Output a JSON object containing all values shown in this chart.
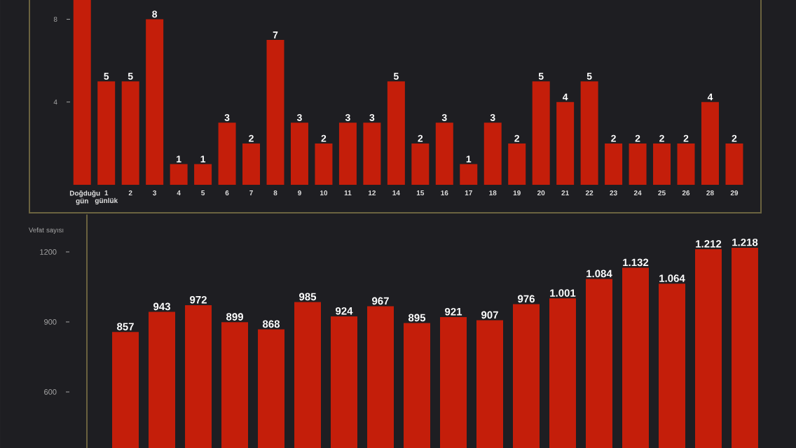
{
  "chart_data": [
    {
      "type": "bar",
      "categories": [
        "Doğduğu gün",
        "1 günlük",
        "2",
        "3",
        "4",
        "5",
        "6",
        "7",
        "8",
        "9",
        "10",
        "11",
        "12",
        "14",
        "15",
        "16",
        "17",
        "18",
        "19",
        "20",
        "21",
        "22",
        "23",
        "24",
        "25",
        "26",
        "28",
        "29"
      ],
      "values": [
        9,
        5,
        5,
        8,
        1,
        1,
        3,
        2,
        7,
        3,
        2,
        3,
        3,
        5,
        2,
        3,
        1,
        3,
        2,
        5,
        4,
        5,
        2,
        2,
        2,
        2,
        4,
        2
      ],
      "value_labels": [
        null,
        "5",
        "5",
        "8",
        "1",
        "1",
        "3",
        "2",
        "7",
        "3",
        "2",
        "3",
        "3",
        "5",
        "2",
        "3",
        "1",
        "3",
        "2",
        "5",
        "4",
        "5",
        "2",
        "2",
        "2",
        "2",
        "4",
        "2"
      ],
      "color": "#c41e0a",
      "ylim": [
        0,
        9
      ],
      "yticks": [
        4,
        8
      ]
    },
    {
      "type": "bar",
      "categories": [
        null,
        null,
        null,
        null,
        null,
        null,
        null,
        null,
        null,
        null,
        null,
        null,
        null,
        null,
        null,
        null,
        null,
        null
      ],
      "values": [
        857,
        943,
        972,
        899,
        868,
        985,
        924,
        967,
        895,
        921,
        907,
        976,
        1001,
        1084,
        1132,
        1064,
        1212,
        1218
      ],
      "value_labels": [
        "857",
        "943",
        "972",
        "899",
        "868",
        "985",
        "924",
        "967",
        "895",
        "921",
        "907",
        "976",
        "1.001",
        "1.084",
        "1.132",
        "1.064",
        "1.212",
        "1.218"
      ],
      "color": "#c41e0a",
      "ylabel": "Vefat sayısı",
      "ylim": [
        360,
        1360
      ],
      "yticks": [
        600,
        900,
        1200
      ],
      "tick_labels": "y"
    }
  ]
}
